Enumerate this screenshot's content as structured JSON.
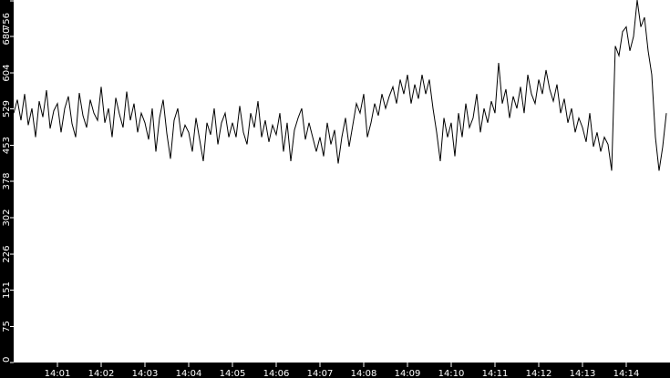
{
  "chart_data": {
    "type": "line",
    "title": "",
    "xlabel": "",
    "ylabel": "",
    "x_start": "14:00:00",
    "x_end": "14:15:00",
    "sample_interval_seconds": 5,
    "x_ticks": [
      "14:01",
      "14:02",
      "14:03",
      "14:04",
      "14:05",
      "14:06",
      "14:07",
      "14:08",
      "14:09",
      "14:10",
      "14:11",
      "14:12",
      "14:13",
      "14:14"
    ],
    "y_ticks": [
      0,
      75,
      151,
      226,
      302,
      378,
      453,
      529,
      604,
      680,
      756
    ],
    "ylim": [
      0,
      756
    ],
    "grid": false,
    "colors": {
      "background": "#ffffff",
      "frame": "#000000",
      "line": "#000000",
      "tick_text": "#ffffff"
    },
    "values": [
      520,
      548,
      505,
      560,
      495,
      530,
      470,
      545,
      512,
      568,
      488,
      525,
      540,
      480,
      530,
      555,
      498,
      470,
      562,
      515,
      490,
      548,
      520,
      505,
      575,
      500,
      530,
      470,
      552,
      518,
      490,
      565,
      505,
      540,
      480,
      520,
      500,
      465,
      530,
      440,
      510,
      548,
      478,
      425,
      505,
      530,
      470,
      495,
      480,
      440,
      510,
      465,
      420,
      500,
      475,
      530,
      455,
      500,
      520,
      470,
      500,
      470,
      535,
      480,
      455,
      520,
      490,
      545,
      470,
      505,
      460,
      495,
      475,
      520,
      440,
      500,
      420,
      485,
      510,
      530,
      465,
      500,
      470,
      440,
      470,
      430,
      500,
      455,
      485,
      415,
      470,
      510,
      450,
      495,
      540,
      520,
      560,
      470,
      500,
      540,
      515,
      560,
      530,
      555,
      575,
      540,
      590,
      560,
      600,
      540,
      580,
      550,
      600,
      560,
      590,
      530,
      480,
      420,
      510,
      470,
      500,
      430,
      520,
      470,
      540,
      490,
      510,
      560,
      480,
      530,
      500,
      545,
      520,
      625,
      540,
      570,
      510,
      555,
      530,
      575,
      520,
      600,
      560,
      540,
      590,
      560,
      610,
      570,
      545,
      580,
      520,
      550,
      500,
      530,
      480,
      510,
      490,
      460,
      520,
      450,
      480,
      440,
      470,
      455,
      400,
      660,
      640,
      690,
      700,
      650,
      680,
      756,
      700,
      720,
      650,
      600,
      470,
      400,
      450,
      520
    ]
  }
}
